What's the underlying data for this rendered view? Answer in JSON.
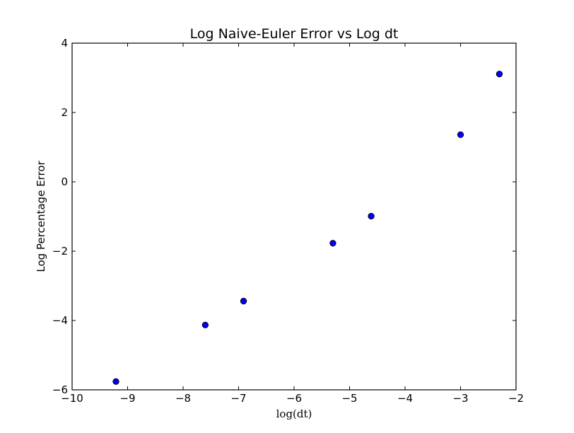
{
  "chart_data": {
    "type": "scatter",
    "title": "Log Naive-Euler Error vs Log dt",
    "xlabel": "log(dt)",
    "ylabel": "Log Percentage Error",
    "xlim": [
      -10,
      -2
    ],
    "ylim": [
      -6,
      4
    ],
    "xticks": [
      -10,
      -9,
      -8,
      -7,
      -6,
      -5,
      -4,
      -3,
      -2
    ],
    "yticks": [
      -6,
      -4,
      -2,
      0,
      2,
      4
    ],
    "grid": false,
    "marker_color": "#0000ff",
    "x": [
      -9.21,
      -7.6,
      -6.91,
      -5.3,
      -4.61,
      -3.0,
      -2.3
    ],
    "y": [
      -5.76,
      -4.13,
      -3.44,
      -1.77,
      -0.99,
      1.36,
      3.11
    ]
  }
}
